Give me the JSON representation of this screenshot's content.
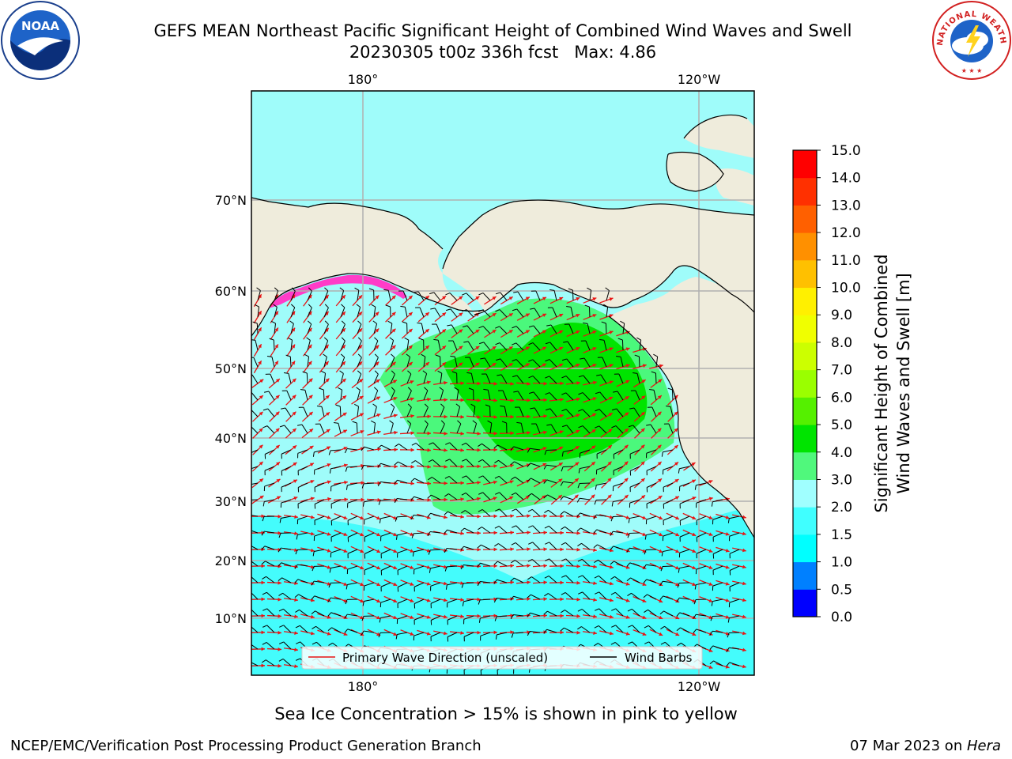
{
  "title": {
    "line1": "GEFS MEAN Northeast Pacific Significant Height of Combined Wind Waves and Swell",
    "line2": "20230305 t00z 336h fcst   Max: 4.86"
  },
  "logos": {
    "left": {
      "icon": "noaa-logo-icon",
      "text": "NOAA"
    },
    "right": {
      "icon": "nws-logo-icon",
      "text": "NATIONAL WEATHER SERVICE"
    }
  },
  "map": {
    "lon_top": [
      "180°",
      "120°W"
    ],
    "lon_bottom": [
      "180°",
      "120°W"
    ],
    "lat": [
      "70°N",
      "60°N",
      "50°N",
      "40°N",
      "30°N",
      "20°N",
      "10°N"
    ],
    "colors": {
      "land": "#efecdc",
      "ocean_low": "#9ffcfa",
      "ocean_cyan": "#44fcfc",
      "wave_3_4": "#4bf87c",
      "wave_4_5": "#00e400",
      "grid": "#b0b0b0",
      "wave_arrow": "#e81414",
      "wind_barb": "#000000",
      "sea_ice": "#ff3cc8"
    },
    "legend": {
      "wave_label": "Primary Wave Direction (unscaled)",
      "wind_label": "Wind Barbs"
    }
  },
  "colorbar": {
    "label_line1": "Significant Height of Combined",
    "label_line2": "Wind Waves and Swell [m]",
    "ticks": [
      "0.0",
      "0.5",
      "1.0",
      "1.5",
      "2.0",
      "3.0",
      "4.0",
      "5.0",
      "6.0",
      "7.0",
      "8.0",
      "9.0",
      "10.0",
      "11.0",
      "12.0",
      "13.0",
      "14.0",
      "15.0"
    ],
    "colors": [
      "#0000ff",
      "#0080ff",
      "#00ffff",
      "#40ffff",
      "#a0ffff",
      "#50f87c",
      "#00e400",
      "#55f000",
      "#9aff00",
      "#ccff00",
      "#f0ff00",
      "#fff000",
      "#ffc000",
      "#ff9000",
      "#ff6000",
      "#ff3000",
      "#ff0000"
    ]
  },
  "caption": "Sea Ice Concentration > 15% is shown in pink to yellow",
  "footer": {
    "left": "NCEP/EMC/Verification Post Processing Product Generation Branch",
    "right_date": "07 Mar 2023 on ",
    "right_host": "Hera"
  }
}
